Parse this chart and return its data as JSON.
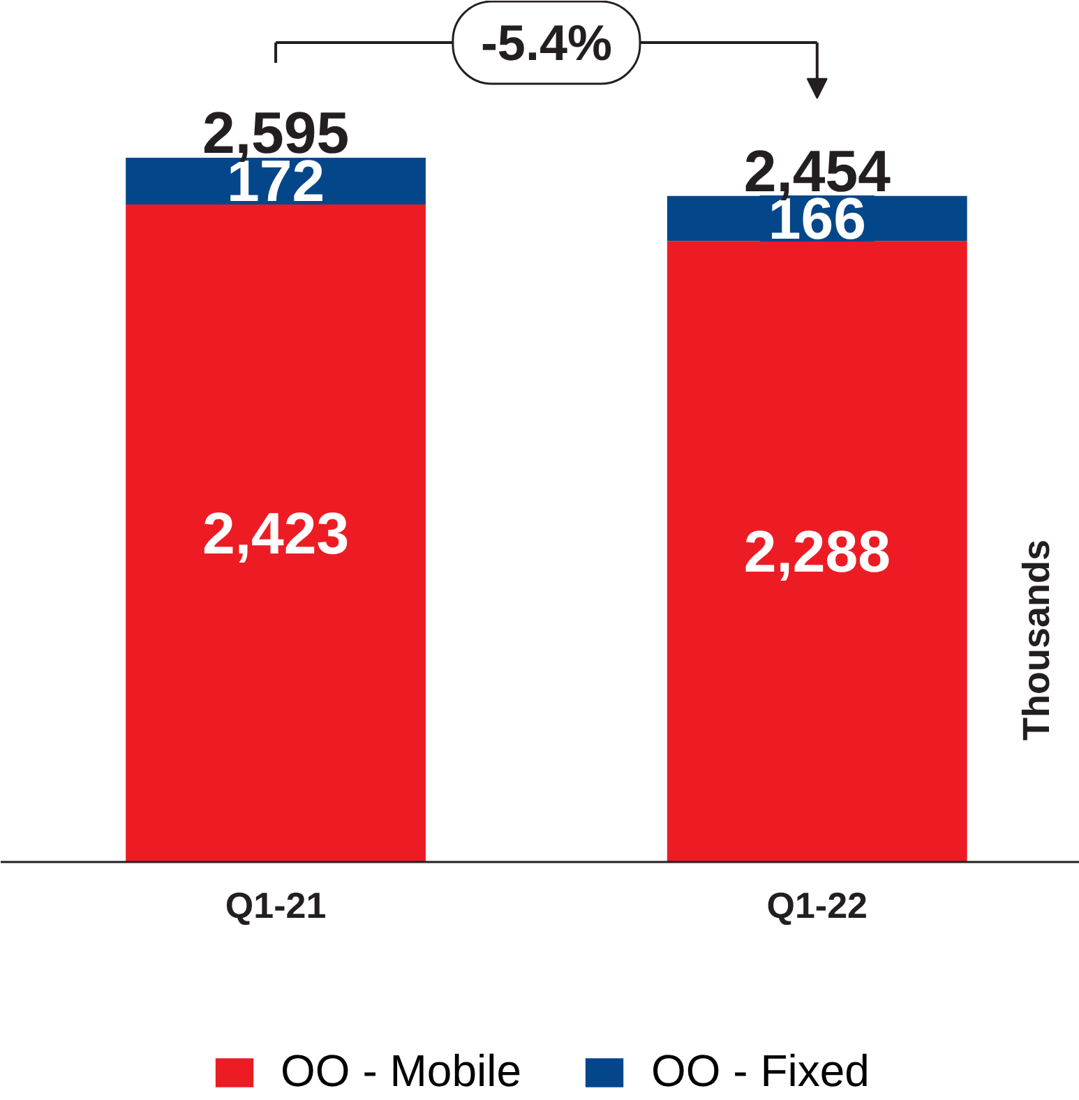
{
  "chart_data": {
    "type": "bar",
    "stacked": true,
    "categories": [
      "Q1-21",
      "Q1-22"
    ],
    "series": [
      {
        "name": "OO - Mobile",
        "color": "#ed1c24",
        "values": [
          2423,
          2288
        ],
        "value_labels": [
          "2,423",
          "2,288"
        ]
      },
      {
        "name": "OO - Fixed",
        "color": "#03478a",
        "values": [
          172,
          166
        ],
        "value_labels": [
          "172",
          "166"
        ]
      }
    ],
    "ylabel": "Thousands",
    "totals": [
      "2,595",
      "2,454"
    ],
    "annotations": [
      "-5.4%"
    ],
    "legend": "bottom",
    "grid": false
  }
}
